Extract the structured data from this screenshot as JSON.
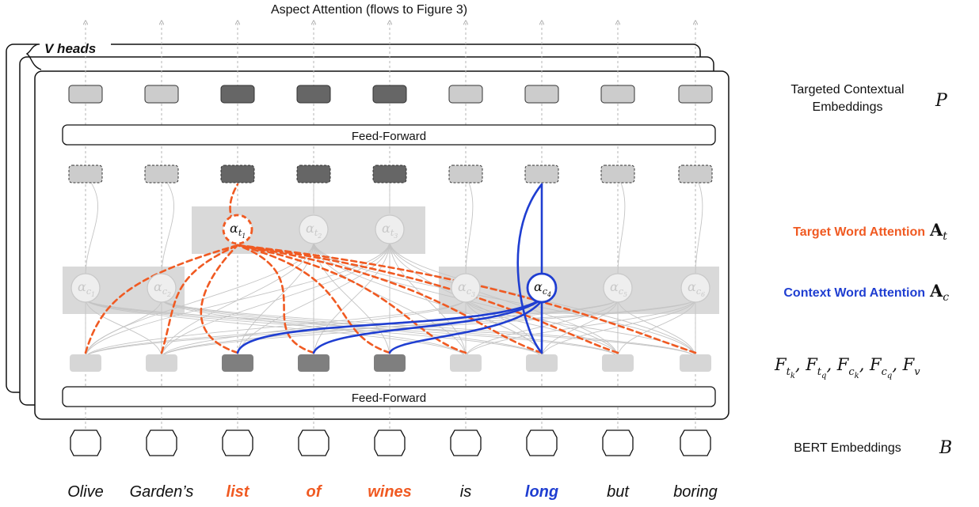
{
  "title": "Aspect Attention (flows to Figure 3)",
  "heads_label": "V heads",
  "feed_forward_top": "Feed-Forward",
  "feed_forward_bottom": "Feed-Forward",
  "right_labels": {
    "targeted_line1": "Targeted Contextual",
    "targeted_line2": "Embeddings",
    "targeted_symbol": "P",
    "target_attention": "Target Word Attention",
    "target_attention_symbol": "A",
    "target_attention_sub": "t",
    "context_attention": "Context Word Attention",
    "context_attention_symbol": "A",
    "context_attention_sub": "c",
    "features": "F_{t_k}, F_{t_q}, F_{c_k}, F_{c_q}, F_v",
    "bert": "BERT Embeddings",
    "bert_symbol": "B"
  },
  "words": [
    {
      "text": "Olive",
      "role": "context"
    },
    {
      "text": "Garden’s",
      "role": "context"
    },
    {
      "text": "list",
      "role": "target"
    },
    {
      "text": "of",
      "role": "target"
    },
    {
      "text": "wines",
      "role": "target"
    },
    {
      "text": "is",
      "role": "context"
    },
    {
      "text": "long",
      "role": "focus"
    },
    {
      "text": "but",
      "role": "context"
    },
    {
      "text": "boring",
      "role": "context"
    }
  ],
  "target_nodes": [
    {
      "sub": "t1",
      "highlighted": true
    },
    {
      "sub": "t2",
      "highlighted": false
    },
    {
      "sub": "t3",
      "highlighted": false
    }
  ],
  "context_nodes": [
    {
      "sub": "c1",
      "highlighted": false
    },
    {
      "sub": "c2",
      "highlighted": false
    },
    {
      "sub": "c3",
      "highlighted": false
    },
    {
      "sub": "c4",
      "highlighted": true
    },
    {
      "sub": "c5",
      "highlighted": false
    },
    {
      "sub": "c6",
      "highlighted": false
    }
  ],
  "colors": {
    "target": "#f05a22",
    "context": "#1f3ed1",
    "dark_box": "#666666",
    "light_box": "#cccccc",
    "panel": "#d9d9d9",
    "node_ghost": "#eeeeee"
  }
}
